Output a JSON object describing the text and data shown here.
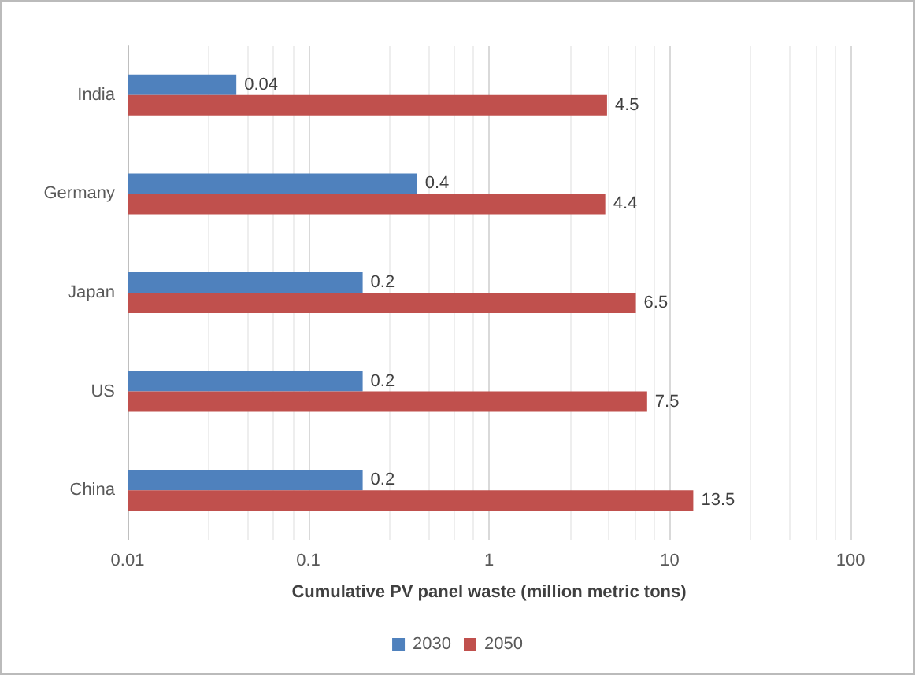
{
  "chart_data": {
    "type": "bar",
    "orientation": "horizontal",
    "xlabel": "Cumulative PV panel waste (million metric tons)",
    "categories": [
      "India",
      "Germany",
      "Japan",
      "US",
      "China"
    ],
    "series": [
      {
        "name": "2030",
        "color": "#4f81bd",
        "values": [
          0.04,
          0.4,
          0.2,
          0.2,
          0.2
        ]
      },
      {
        "name": "2050",
        "color": "#c0504d",
        "values": [
          4.5,
          4.4,
          6.5,
          7.5,
          13.5
        ]
      }
    ],
    "log": "x",
    "xlim": [
      0.01,
      100
    ],
    "xticks": [
      0.01,
      0.1,
      1,
      10,
      100
    ],
    "grid": "x",
    "legend": "bottom",
    "data_labels": true
  }
}
